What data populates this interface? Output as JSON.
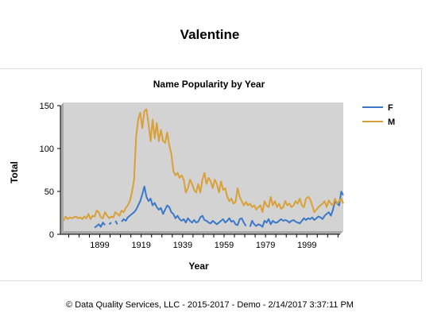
{
  "page": {
    "title": "Valentine",
    "footer": "© Data Quality Services, LLC - 2015-2017 - Demo - 2/14/2017 3:37:11 PM"
  },
  "colors": {
    "F": "#3a78c8",
    "M": "#d9a038",
    "plot_bg": "#d3d3d3",
    "depth": "#a9a9a9"
  },
  "chart_data": {
    "type": "line",
    "title": "Name Popularity by Year",
    "xlabel": "Year",
    "ylabel": "Total",
    "xlim": [
      1880,
      2015
    ],
    "ylim": [
      0,
      150
    ],
    "x_ticks": [
      1899,
      1919,
      1939,
      1959,
      1979,
      1999
    ],
    "y_ticks": [
      0,
      50,
      100,
      150
    ],
    "grid": false,
    "legend": "right",
    "series": [
      {
        "name": "F",
        "points": [
          [
            1895,
            4
          ],
          [
            1896,
            6
          ],
          [
            1897,
            8
          ],
          [
            1898,
            5
          ],
          [
            1899,
            10
          ],
          [
            1900,
            7
          ],
          [
            1902,
            8
          ],
          [
            1903,
            10
          ],
          [
            1905,
            12
          ],
          [
            1906,
            8
          ],
          [
            1908,
            11
          ],
          [
            1909,
            14
          ],
          [
            1910,
            12
          ],
          [
            1911,
            16
          ],
          [
            1912,
            18
          ],
          [
            1913,
            20
          ],
          [
            1914,
            22
          ],
          [
            1915,
            25
          ],
          [
            1916,
            30
          ],
          [
            1917,
            35
          ],
          [
            1918,
            43
          ],
          [
            1919,
            52
          ],
          [
            1920,
            40
          ],
          [
            1921,
            35
          ],
          [
            1922,
            38
          ],
          [
            1923,
            30
          ],
          [
            1924,
            33
          ],
          [
            1925,
            28
          ],
          [
            1926,
            25
          ],
          [
            1927,
            27
          ],
          [
            1928,
            20
          ],
          [
            1929,
            25
          ],
          [
            1930,
            30
          ],
          [
            1931,
            28
          ],
          [
            1932,
            22
          ],
          [
            1933,
            20
          ],
          [
            1934,
            15
          ],
          [
            1935,
            18
          ],
          [
            1936,
            14
          ],
          [
            1937,
            12
          ],
          [
            1938,
            14
          ],
          [
            1939,
            10
          ],
          [
            1940,
            15
          ],
          [
            1941,
            12
          ],
          [
            1942,
            10
          ],
          [
            1943,
            13
          ],
          [
            1944,
            10
          ],
          [
            1945,
            11
          ],
          [
            1946,
            16
          ],
          [
            1947,
            18
          ],
          [
            1948,
            13
          ],
          [
            1949,
            12
          ],
          [
            1950,
            10
          ],
          [
            1951,
            9
          ],
          [
            1952,
            12
          ],
          [
            1953,
            10
          ],
          [
            1954,
            8
          ],
          [
            1955,
            10
          ],
          [
            1956,
            12
          ],
          [
            1957,
            14
          ],
          [
            1958,
            10
          ],
          [
            1959,
            12
          ],
          [
            1960,
            15
          ],
          [
            1961,
            11
          ],
          [
            1962,
            12
          ],
          [
            1963,
            8
          ],
          [
            1964,
            7
          ],
          [
            1965,
            14
          ],
          [
            1966,
            15
          ],
          [
            1967,
            10
          ],
          [
            1968,
            6
          ],
          [
            1970,
            5
          ],
          [
            1971,
            12
          ],
          [
            1972,
            8
          ],
          [
            1973,
            6
          ],
          [
            1974,
            8
          ],
          [
            1975,
            7
          ],
          [
            1976,
            5
          ],
          [
            1977,
            12
          ],
          [
            1978,
            10
          ],
          [
            1979,
            14
          ],
          [
            1980,
            8
          ],
          [
            1981,
            12
          ],
          [
            1982,
            10
          ],
          [
            1983,
            10
          ],
          [
            1984,
            12
          ],
          [
            1985,
            14
          ],
          [
            1986,
            12
          ],
          [
            1987,
            13
          ],
          [
            1988,
            12
          ],
          [
            1989,
            10
          ],
          [
            1990,
            12
          ],
          [
            1991,
            13
          ],
          [
            1992,
            11
          ],
          [
            1993,
            10
          ],
          [
            1994,
            9
          ],
          [
            1995,
            12
          ],
          [
            1996,
            15
          ],
          [
            1997,
            13
          ],
          [
            1998,
            15
          ],
          [
            1999,
            14
          ],
          [
            2000,
            16
          ],
          [
            2001,
            13
          ],
          [
            2002,
            15
          ],
          [
            2003,
            17
          ],
          [
            2004,
            16
          ],
          [
            2005,
            14
          ],
          [
            2006,
            18
          ],
          [
            2007,
            20
          ],
          [
            2008,
            22
          ],
          [
            2009,
            18
          ],
          [
            2010,
            25
          ],
          [
            2011,
            35
          ],
          [
            2012,
            32
          ],
          [
            2013,
            30
          ],
          [
            2014,
            46
          ],
          [
            2015,
            42
          ]
        ]
      },
      {
        "name": "M",
        "points": [
          [
            1880,
            12
          ],
          [
            1881,
            17
          ],
          [
            1882,
            14
          ],
          [
            1883,
            16
          ],
          [
            1884,
            15
          ],
          [
            1885,
            16
          ],
          [
            1886,
            17
          ],
          [
            1887,
            15
          ],
          [
            1888,
            16
          ],
          [
            1889,
            14
          ],
          [
            1890,
            17
          ],
          [
            1891,
            15
          ],
          [
            1892,
            20
          ],
          [
            1893,
            14
          ],
          [
            1894,
            18
          ],
          [
            1895,
            17
          ],
          [
            1896,
            24
          ],
          [
            1897,
            22
          ],
          [
            1898,
            16
          ],
          [
            1899,
            15
          ],
          [
            1900,
            22
          ],
          [
            1901,
            18
          ],
          [
            1902,
            15
          ],
          [
            1903,
            17
          ],
          [
            1904,
            16
          ],
          [
            1905,
            22
          ],
          [
            1906,
            20
          ],
          [
            1907,
            18
          ],
          [
            1908,
            24
          ],
          [
            1909,
            22
          ],
          [
            1910,
            27
          ],
          [
            1911,
            30
          ],
          [
            1912,
            35
          ],
          [
            1913,
            45
          ],
          [
            1914,
            60
          ],
          [
            1915,
            110
          ],
          [
            1916,
            130
          ],
          [
            1917,
            138
          ],
          [
            1918,
            120
          ],
          [
            1919,
            140
          ],
          [
            1920,
            142
          ],
          [
            1921,
            125
          ],
          [
            1922,
            105
          ],
          [
            1923,
            130
          ],
          [
            1924,
            108
          ],
          [
            1925,
            126
          ],
          [
            1926,
            105
          ],
          [
            1927,
            118
          ],
          [
            1928,
            105
          ],
          [
            1929,
            103
          ],
          [
            1930,
            115
          ],
          [
            1931,
            100
          ],
          [
            1932,
            90
          ],
          [
            1933,
            70
          ],
          [
            1934,
            65
          ],
          [
            1935,
            68
          ],
          [
            1936,
            62
          ],
          [
            1937,
            65
          ],
          [
            1938,
            60
          ],
          [
            1939,
            45
          ],
          [
            1940,
            50
          ],
          [
            1941,
            60
          ],
          [
            1942,
            55
          ],
          [
            1943,
            48
          ],
          [
            1944,
            45
          ],
          [
            1945,
            55
          ],
          [
            1946,
            45
          ],
          [
            1947,
            60
          ],
          [
            1948,
            68
          ],
          [
            1949,
            55
          ],
          [
            1950,
            62
          ],
          [
            1951,
            58
          ],
          [
            1952,
            50
          ],
          [
            1953,
            60
          ],
          [
            1954,
            55
          ],
          [
            1955,
            45
          ],
          [
            1956,
            58
          ],
          [
            1957,
            48
          ],
          [
            1958,
            50
          ],
          [
            1959,
            40
          ],
          [
            1960,
            35
          ],
          [
            1961,
            38
          ],
          [
            1962,
            32
          ],
          [
            1963,
            34
          ],
          [
            1964,
            50
          ],
          [
            1965,
            40
          ],
          [
            1966,
            35
          ],
          [
            1967,
            30
          ],
          [
            1968,
            34
          ],
          [
            1969,
            30
          ],
          [
            1970,
            32
          ],
          [
            1971,
            28
          ],
          [
            1972,
            30
          ],
          [
            1973,
            25
          ],
          [
            1974,
            28
          ],
          [
            1975,
            30
          ],
          [
            1976,
            22
          ],
          [
            1977,
            35
          ],
          [
            1978,
            30
          ],
          [
            1979,
            28
          ],
          [
            1980,
            40
          ],
          [
            1981,
            30
          ],
          [
            1982,
            35
          ],
          [
            1983,
            28
          ],
          [
            1984,
            32
          ],
          [
            1985,
            26
          ],
          [
            1986,
            28
          ],
          [
            1987,
            35
          ],
          [
            1988,
            30
          ],
          [
            1989,
            32
          ],
          [
            1990,
            28
          ],
          [
            1991,
            30
          ],
          [
            1992,
            35
          ],
          [
            1993,
            32
          ],
          [
            1994,
            38
          ],
          [
            1995,
            30
          ],
          [
            1996,
            28
          ],
          [
            1997,
            38
          ],
          [
            1998,
            40
          ],
          [
            1999,
            37
          ],
          [
            2000,
            30
          ],
          [
            2001,
            22
          ],
          [
            2002,
            25
          ],
          [
            2003,
            28
          ],
          [
            2004,
            30
          ],
          [
            2005,
            32
          ],
          [
            2006,
            35
          ],
          [
            2007,
            28
          ],
          [
            2008,
            36
          ],
          [
            2009,
            32
          ],
          [
            2010,
            30
          ],
          [
            2011,
            38
          ],
          [
            2012,
            32
          ],
          [
            2013,
            35
          ],
          [
            2014,
            38
          ],
          [
            2015,
            32
          ]
        ]
      }
    ]
  }
}
